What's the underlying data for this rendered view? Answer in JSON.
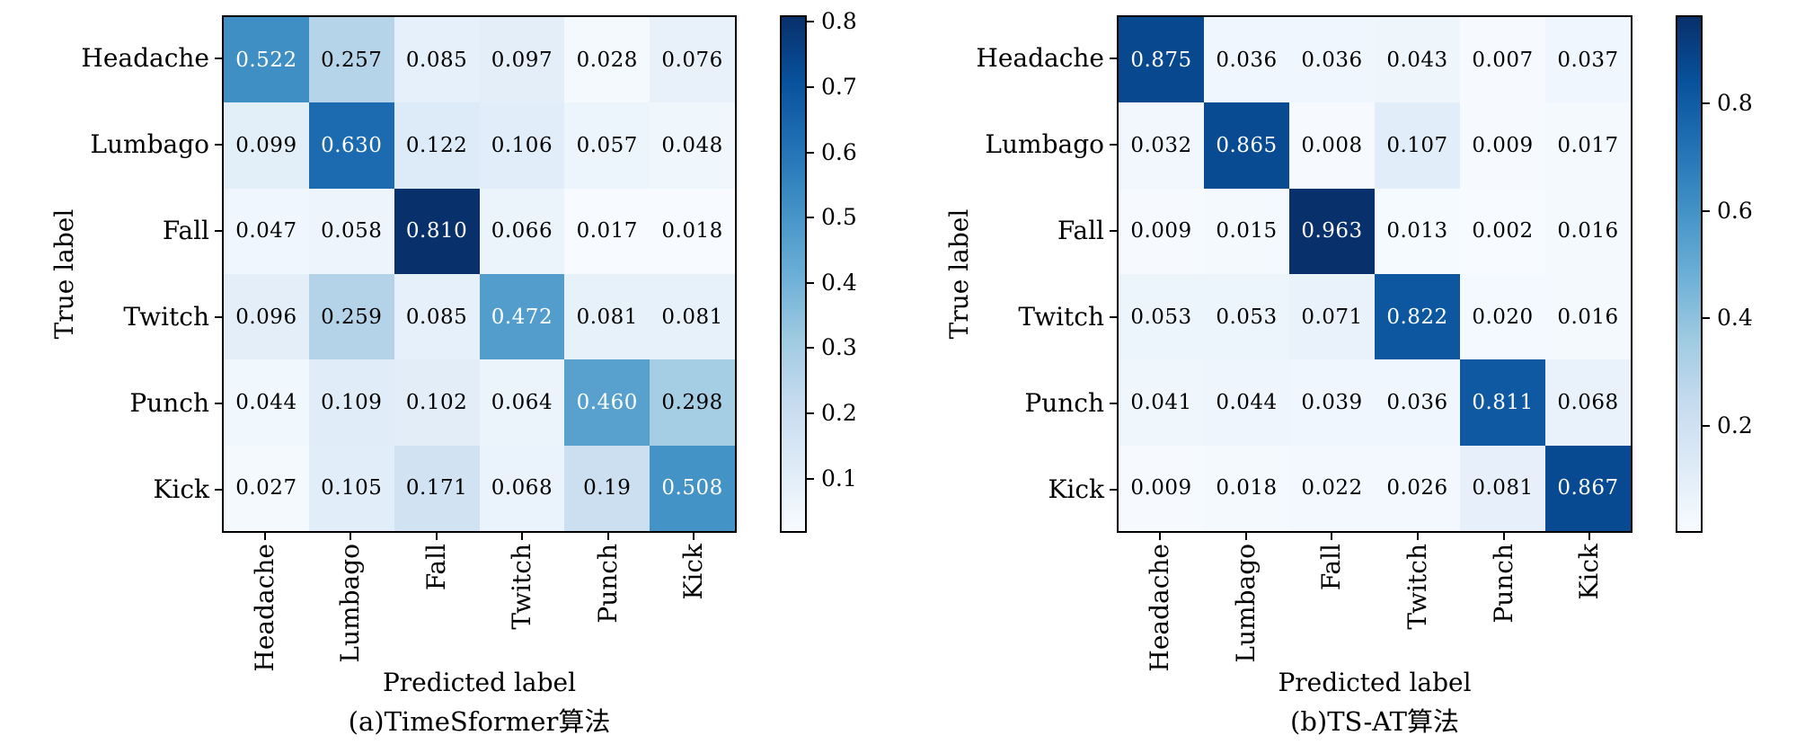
{
  "figure": {
    "background": "#ffffff",
    "text_color": "#000000",
    "colormap": {
      "name": "Blues",
      "anchors": [
        "#f7fbff",
        "#deebf7",
        "#c6dbef",
        "#9ecae1",
        "#6baed6",
        "#4292c6",
        "#2171b5",
        "#08519c",
        "#08306b"
      ]
    }
  },
  "chart_data": [
    {
      "type": "heatmap",
      "title": "(a)TimeSformer算法",
      "xlabel": "Predicted label",
      "ylabel": "True label",
      "x_categories": [
        "Headache",
        "Lumbago",
        "Fall",
        "Twitch",
        "Punch",
        "Kick"
      ],
      "y_categories": [
        "Headache",
        "Lumbago",
        "Fall",
        "Twitch",
        "Punch",
        "Kick"
      ],
      "values": [
        [
          0.522,
          0.257,
          0.085,
          0.097,
          0.028,
          0.076
        ],
        [
          0.099,
          0.63,
          0.122,
          0.106,
          0.057,
          0.048
        ],
        [
          0.047,
          0.058,
          0.81,
          0.066,
          0.017,
          0.018
        ],
        [
          0.096,
          0.259,
          0.085,
          0.472,
          0.081,
          0.081
        ],
        [
          0.044,
          0.109,
          0.102,
          0.064,
          0.46,
          0.298
        ],
        [
          0.027,
          0.105,
          0.171,
          0.068,
          0.19,
          0.508
        ]
      ],
      "cell_labels": [
        [
          "0.522",
          "0.257",
          "0.085",
          "0.097",
          "0.028",
          "0.076"
        ],
        [
          "0.099",
          "0.630",
          "0.122",
          "0.106",
          "0.057",
          "0.048"
        ],
        [
          "0.047",
          "0.058",
          "0.810",
          "0.066",
          "0.017",
          "0.018"
        ],
        [
          "0.096",
          "0.259",
          "0.085",
          "0.472",
          "0.081",
          "0.081"
        ],
        [
          "0.044",
          "0.109",
          "0.102",
          "0.064",
          "0.460",
          "0.298"
        ],
        [
          "0.027",
          "0.105",
          "0.171",
          "0.068",
          "0.19",
          "0.508"
        ]
      ],
      "colorbar_ticks": [
        "0.8",
        "0.7",
        "0.6",
        "0.5",
        "0.4",
        "0.3",
        "0.2",
        "0.1"
      ],
      "legend_position": "right-colorbar",
      "grid": false
    },
    {
      "type": "heatmap",
      "title": "(b)TS-AT算法",
      "xlabel": "Predicted label",
      "ylabel": "True label",
      "x_categories": [
        "Headache",
        "Lumbago",
        "Fall",
        "Twitch",
        "Punch",
        "Kick"
      ],
      "y_categories": [
        "Headache",
        "Lumbago",
        "Fall",
        "Twitch",
        "Punch",
        "Kick"
      ],
      "values": [
        [
          0.875,
          0.036,
          0.036,
          0.043,
          0.007,
          0.037
        ],
        [
          0.032,
          0.865,
          0.008,
          0.107,
          0.009,
          0.017
        ],
        [
          0.009,
          0.015,
          0.963,
          0.013,
          0.002,
          0.016
        ],
        [
          0.053,
          0.053,
          0.071,
          0.822,
          0.02,
          0.016
        ],
        [
          0.041,
          0.044,
          0.039,
          0.036,
          0.811,
          0.068
        ],
        [
          0.009,
          0.018,
          0.022,
          0.026,
          0.081,
          0.867
        ]
      ],
      "cell_labels": [
        [
          "0.875",
          "0.036",
          "0.036",
          "0.043",
          "0.007",
          "0.037"
        ],
        [
          "0.032",
          "0.865",
          "0.008",
          "0.107",
          "0.009",
          "0.017"
        ],
        [
          "0.009",
          "0.015",
          "0.963",
          "0.013",
          "0.002",
          "0.016"
        ],
        [
          "0.053",
          "0.053",
          "0.071",
          "0.822",
          "0.020",
          "0.016"
        ],
        [
          "0.041",
          "0.044",
          "0.039",
          "0.036",
          "0.811",
          "0.068"
        ],
        [
          "0.009",
          "0.018",
          "0.022",
          "0.026",
          "0.081",
          "0.867"
        ]
      ],
      "colorbar_ticks": [
        "0.8",
        "0.6",
        "0.4",
        "0.2"
      ],
      "legend_position": "right-colorbar",
      "grid": false
    }
  ]
}
